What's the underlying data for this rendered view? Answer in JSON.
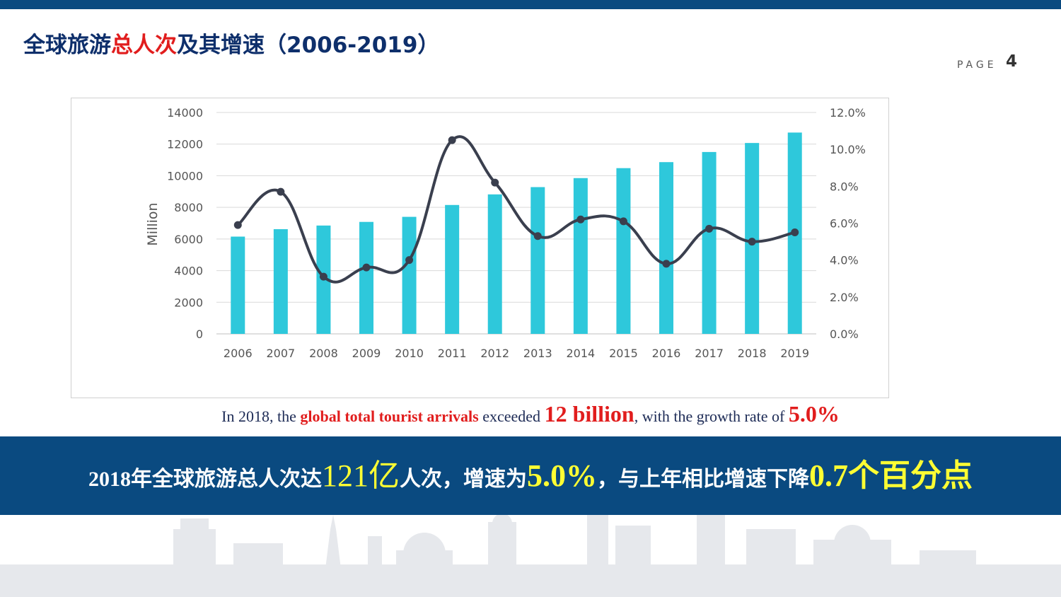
{
  "colors": {
    "top_bar": "#0a4a80",
    "title_main": "#0e2f6b",
    "title_highlight": "#e11d1d",
    "bar_fill": "#2ec8db",
    "line_stroke": "#3a3f4e",
    "banner_bg": "#0a4a80",
    "banner_highlight": "#ffff33",
    "skyline": "#e4e6ea"
  },
  "header": {
    "title_part1": "全球旅游",
    "title_highlight": "总人次",
    "title_part2": "及其增速（2006-2019）",
    "page_label": "PAGE",
    "page_number": "4"
  },
  "caption": {
    "p1": "In 2018, the ",
    "highlight1": "global total tourist arrivals",
    "p2": " exceeded ",
    "highlight2": "12 billion",
    "p3": ", with the growth rate of ",
    "highlight3": "5.0%"
  },
  "banner": {
    "p1": "2018年全球旅游总人次达",
    "n1": "121亿",
    "p2": "人次，增速为",
    "n2": "5.0%",
    "p3": "，与上年相比增速下降",
    "n3": "0.7个百分点"
  },
  "chart_data": {
    "type": "bar",
    "categories": [
      "2006",
      "2007",
      "2008",
      "2009",
      "2010",
      "2011",
      "2012",
      "2013",
      "2014",
      "2015",
      "2016",
      "2017",
      "2018",
      "2019"
    ],
    "series": [
      {
        "type": "bar",
        "axis": "left",
        "values": [
          6150,
          6620,
          6850,
          7080,
          7400,
          8150,
          8820,
          9280,
          9850,
          10480,
          10860,
          11500,
          12070,
          12730
        ]
      },
      {
        "type": "line",
        "axis": "right",
        "smooth": true,
        "marker": "circle",
        "values": [
          5.9,
          7.7,
          3.1,
          3.6,
          4.0,
          10.5,
          8.2,
          5.3,
          6.2,
          6.1,
          3.8,
          5.7,
          5.0,
          5.5
        ]
      }
    ],
    "ylabel": "Million",
    "ylim": [
      0,
      14000
    ],
    "yticks": [
      "0",
      "2000",
      "4000",
      "6000",
      "8000",
      "10000",
      "12000",
      "14000"
    ],
    "y2lim": [
      0,
      12
    ],
    "y2ticks": [
      "0.0%",
      "2.0%",
      "4.0%",
      "6.0%",
      "8.0%",
      "10.0%",
      "12.0%"
    ],
    "grid": true,
    "legend": "none"
  }
}
